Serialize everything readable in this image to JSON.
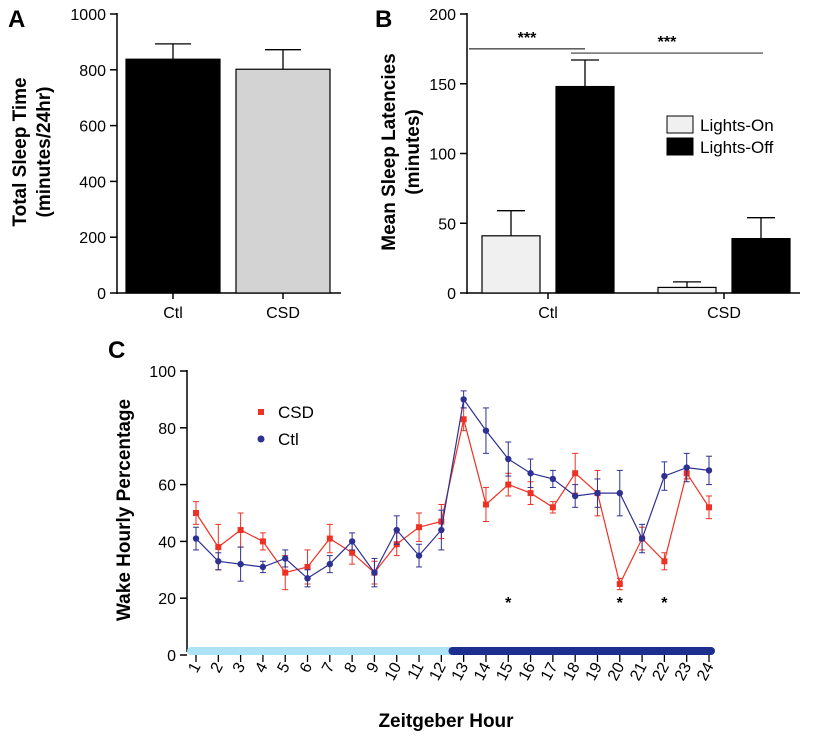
{
  "chart_data": [
    {
      "panel": "A",
      "type": "bar",
      "categories": [
        "Ctl",
        "CSD"
      ],
      "values": [
        838,
        802
      ],
      "errors": [
        55,
        70
      ],
      "colors": [
        "#000000",
        "#d3d3d3"
      ],
      "ylabel_line1": "Total Sleep Time",
      "ylabel_line2": "(minutes/24hr)",
      "ylim": [
        0,
        1000
      ],
      "yticks": [
        0,
        200,
        400,
        600,
        800,
        1000
      ]
    },
    {
      "panel": "B",
      "type": "bar",
      "categories": [
        "Ctl",
        "CSD"
      ],
      "series": [
        {
          "name": "Lights-On",
          "color": "#f0f0f0",
          "values": [
            41,
            4
          ],
          "errors": [
            18,
            4
          ]
        },
        {
          "name": "Lights-Off",
          "color": "#000000",
          "values": [
            148,
            39
          ],
          "errors": [
            19,
            15
          ]
        }
      ],
      "ylabel_line1": "Mean Sleep Latencies",
      "ylabel_line2": "(minutes)",
      "ylim": [
        0,
        200
      ],
      "yticks": [
        0,
        50,
        100,
        150,
        200
      ],
      "significance": [
        {
          "label": "***",
          "from_group": 0,
          "from_series": 0,
          "to_group": 0,
          "to_series": 1,
          "y": 175
        },
        {
          "label": "***",
          "from_group": 0,
          "from_series": 1,
          "to_group": 1,
          "to_series": 1,
          "y": 172
        }
      ]
    },
    {
      "panel": "C",
      "type": "line",
      "x": [
        1,
        2,
        3,
        4,
        5,
        6,
        7,
        8,
        9,
        10,
        11,
        12,
        13,
        14,
        15,
        16,
        17,
        18,
        19,
        20,
        21,
        22,
        23,
        24
      ],
      "series": [
        {
          "name": "CSD",
          "color": "#ee3124",
          "values": [
            50,
            38,
            44,
            40,
            29,
            31,
            41,
            36,
            29,
            39,
            45,
            47,
            83,
            53,
            60,
            57,
            52,
            64,
            57,
            25,
            41,
            33,
            64,
            52
          ],
          "errors": [
            4,
            8,
            6,
            3,
            6,
            6,
            5,
            4,
            4,
            4,
            5,
            6,
            4,
            6,
            4,
            4,
            2,
            7,
            8,
            2,
            4,
            3,
            2,
            4
          ]
        },
        {
          "name": "Ctl",
          "color": "#2e3192",
          "values": [
            41,
            33,
            32,
            31,
            34,
            27,
            32,
            40,
            29,
            44,
            35,
            44,
            90,
            79,
            69,
            64,
            62,
            56,
            57,
            57,
            41,
            63,
            66,
            65
          ],
          "errors": [
            4,
            3,
            6,
            2,
            3,
            3,
            3,
            3,
            5,
            5,
            4,
            7,
            3,
            8,
            6,
            5,
            3,
            4,
            5,
            8,
            5,
            5,
            5,
            5
          ]
        }
      ],
      "ylabel": "Wake Hourly Percentage",
      "xlabel": "Zeitgeber Hour",
      "ylim": [
        0,
        100
      ],
      "yticks": [
        0,
        20,
        40,
        60,
        80,
        100
      ],
      "significance_hours": [
        15,
        20,
        22
      ],
      "star": "*",
      "light_phase_color": "#aee3f5",
      "dark_phase_color": "#1c2f8f",
      "light_phase_end_hour": 12.5
    }
  ],
  "panels": {
    "a": "A",
    "b": "B",
    "c": "C"
  }
}
